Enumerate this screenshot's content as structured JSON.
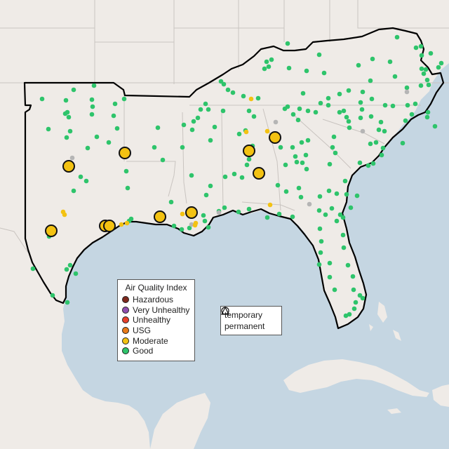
{
  "map": {
    "land_color": "#efebe7",
    "water_color": "#c5d6e2",
    "boundary_color": "#c9c4c0",
    "region_outline_color": "#000000"
  },
  "aqi_legend": {
    "title": "Air Quality Index",
    "categories": [
      {
        "label": "Hazardous",
        "color": "#7e2a1e"
      },
      {
        "label": "Very Unhealthy",
        "color": "#8f4fb0"
      },
      {
        "label": "Unhealthy",
        "color": "#e8412c"
      },
      {
        "label": "USG",
        "color": "#e87a19"
      },
      {
        "label": "Moderate",
        "color": "#f3c212"
      },
      {
        "label": "Good",
        "color": "#2ec46b"
      }
    ]
  },
  "shape_legend": {
    "items": [
      {
        "label": "temporary",
        "shape": "circle-icon"
      },
      {
        "label": "permanent",
        "shape": "triangle-icon"
      }
    ]
  },
  "large_moderate_sites": [
    [
      178,
      218
    ],
    [
      98,
      237
    ],
    [
      355,
      215
    ],
    [
      392,
      196
    ],
    [
      369,
      247
    ],
    [
      73,
      329
    ],
    [
      150,
      322
    ],
    [
      156,
      322
    ],
    [
      228,
      309
    ],
    [
      273,
      303
    ]
  ],
  "small_moderate_sites": [
    [
      358,
      141
    ],
    [
      381,
      187
    ],
    [
      351,
      188
    ],
    [
      92,
      306
    ],
    [
      90,
      302
    ],
    [
      181,
      318
    ],
    [
      173,
      320
    ],
    [
      260,
      305
    ],
    [
      279,
      318
    ],
    [
      278,
      321
    ],
    [
      385,
      292
    ]
  ],
  "gray_sites": [
    [
      103,
      225
    ],
    [
      517,
      187
    ],
    [
      580,
      131
    ],
    [
      393,
      174
    ],
    [
      441,
      291
    ],
    [
      312,
      303
    ],
    [
      273,
      320
    ]
  ],
  "good_sites": [
    [
      60,
      141
    ],
    [
      94,
      143
    ],
    [
      105,
      128
    ],
    [
      134,
      122
    ],
    [
      131,
      142
    ],
    [
      177,
      141
    ],
    [
      164,
      148
    ],
    [
      162,
      165
    ],
    [
      96,
      160
    ],
    [
      93,
      162
    ],
    [
      98,
      167
    ],
    [
      132,
      152
    ],
    [
      131,
      163
    ],
    [
      100,
      187
    ],
    [
      69,
      184
    ],
    [
      95,
      196
    ],
    [
      138,
      195
    ],
    [
      167,
      183
    ],
    [
      155,
      203
    ],
    [
      125,
      211
    ],
    [
      115,
      252
    ],
    [
      123,
      258
    ],
    [
      105,
      272
    ],
    [
      180,
      244
    ],
    [
      182,
      268
    ],
    [
      187,
      312
    ],
    [
      184,
      315
    ],
    [
      95,
      384
    ],
    [
      100,
      378
    ],
    [
      108,
      390
    ],
    [
      96,
      431
    ],
    [
      47,
      383
    ],
    [
      75,
      421
    ],
    [
      70,
      337
    ],
    [
      225,
      182
    ],
    [
      220,
      210
    ],
    [
      232,
      228
    ],
    [
      260,
      210
    ],
    [
      262,
      178
    ],
    [
      286,
      156
    ],
    [
      276,
      173
    ],
    [
      274,
      185
    ],
    [
      282,
      168
    ],
    [
      293,
      148
    ],
    [
      297,
      156
    ],
    [
      318,
      158
    ],
    [
      300,
      200
    ],
    [
      306,
      181
    ],
    [
      300,
      265
    ],
    [
      294,
      278
    ],
    [
      273,
      250
    ],
    [
      244,
      288
    ],
    [
      248,
      322
    ],
    [
      259,
      327
    ],
    [
      270,
      325
    ],
    [
      290,
      307
    ],
    [
      292,
      315
    ],
    [
      297,
      324
    ],
    [
      312,
      301
    ],
    [
      320,
      296
    ],
    [
      321,
      252
    ],
    [
      345,
      253
    ],
    [
      352,
      235
    ],
    [
      372,
      245
    ],
    [
      355,
      227
    ],
    [
      360,
      208
    ],
    [
      341,
      191
    ],
    [
      350,
      186
    ],
    [
      362,
      166
    ],
    [
      355,
      158
    ],
    [
      368,
      140
    ],
    [
      347,
      137
    ],
    [
      332,
      132
    ],
    [
      325,
      128
    ],
    [
      319,
      120
    ],
    [
      315,
      116
    ],
    [
      334,
      248
    ],
    [
      340,
      302
    ],
    [
      355,
      298
    ],
    [
      381,
      310
    ],
    [
      398,
      305
    ],
    [
      417,
      309
    ],
    [
      410,
      62
    ],
    [
      380,
      88
    ],
    [
      387,
      85
    ],
    [
      383,
      95
    ],
    [
      377,
      98
    ],
    [
      412,
      97
    ],
    [
      437,
      101
    ],
    [
      455,
      78
    ],
    [
      462,
      104
    ],
    [
      511,
      93
    ],
    [
      531,
      84
    ],
    [
      566,
      53
    ],
    [
      593,
      68
    ],
    [
      600,
      66
    ],
    [
      601,
      79
    ],
    [
      614,
      76
    ],
    [
      625,
      96
    ],
    [
      629,
      90
    ],
    [
      607,
      99
    ],
    [
      601,
      98
    ],
    [
      604,
      105
    ],
    [
      609,
      114
    ],
    [
      611,
      121
    ],
    [
      600,
      122
    ],
    [
      580,
      125
    ],
    [
      563,
      109
    ],
    [
      556,
      88
    ],
    [
      528,
      115
    ],
    [
      517,
      131
    ],
    [
      497,
      129
    ],
    [
      484,
      134
    ],
    [
      468,
      140
    ],
    [
      457,
      147
    ],
    [
      432,
      133
    ],
    [
      427,
      155
    ],
    [
      418,
      163
    ],
    [
      410,
      152
    ],
    [
      406,
      155
    ],
    [
      425,
      171
    ],
    [
      439,
      158
    ],
    [
      450,
      160
    ],
    [
      468,
      150
    ],
    [
      490,
      158
    ],
    [
      484,
      160
    ],
    [
      494,
      167
    ],
    [
      514,
      146
    ],
    [
      516,
      156
    ],
    [
      530,
      141
    ],
    [
      549,
      150
    ],
    [
      560,
      151
    ],
    [
      581,
      150
    ],
    [
      592,
      148
    ],
    [
      587,
      163
    ],
    [
      578,
      172
    ],
    [
      609,
      167
    ],
    [
      620,
      180
    ],
    [
      610,
      160
    ],
    [
      497,
      173
    ],
    [
      498,
      182
    ],
    [
      514,
      168
    ],
    [
      543,
      174
    ],
    [
      540,
      185
    ],
    [
      529,
      166
    ],
    [
      548,
      187
    ],
    [
      536,
      203
    ],
    [
      528,
      205
    ],
    [
      525,
      236
    ],
    [
      513,
      232
    ],
    [
      532,
      233
    ],
    [
      544,
      221
    ],
    [
      574,
      204
    ],
    [
      546,
      211
    ],
    [
      400,
      210
    ],
    [
      417,
      210
    ],
    [
      421,
      223
    ],
    [
      430,
      203
    ],
    [
      439,
      200
    ],
    [
      476,
      195
    ],
    [
      474,
      210
    ],
    [
      478,
      218
    ],
    [
      470,
      234
    ],
    [
      437,
      241
    ],
    [
      436,
      221
    ],
    [
      423,
      231
    ],
    [
      431,
      232
    ],
    [
      407,
      235
    ],
    [
      408,
      273
    ],
    [
      396,
      264
    ],
    [
      426,
      268
    ],
    [
      429,
      281
    ],
    [
      456,
      280
    ],
    [
      469,
      272
    ],
    [
      480,
      276
    ],
    [
      492,
      258
    ],
    [
      494,
      277
    ],
    [
      500,
      296
    ],
    [
      509,
      279
    ],
    [
      473,
      297
    ],
    [
      489,
      310
    ],
    [
      480,
      315
    ],
    [
      485,
      306
    ],
    [
      464,
      306
    ],
    [
      455,
      300
    ],
    [
      456,
      326
    ],
    [
      458,
      344
    ],
    [
      457,
      360
    ],
    [
      455,
      377
    ],
    [
      470,
      375
    ],
    [
      470,
      395
    ],
    [
      477,
      413
    ],
    [
      489,
      335
    ],
    [
      490,
      353
    ],
    [
      496,
      378
    ],
    [
      503,
      394
    ],
    [
      504,
      413
    ],
    [
      513,
      421
    ],
    [
      517,
      425
    ],
    [
      507,
      431
    ],
    [
      505,
      440
    ],
    [
      498,
      448
    ],
    [
      493,
      450
    ]
  ]
}
